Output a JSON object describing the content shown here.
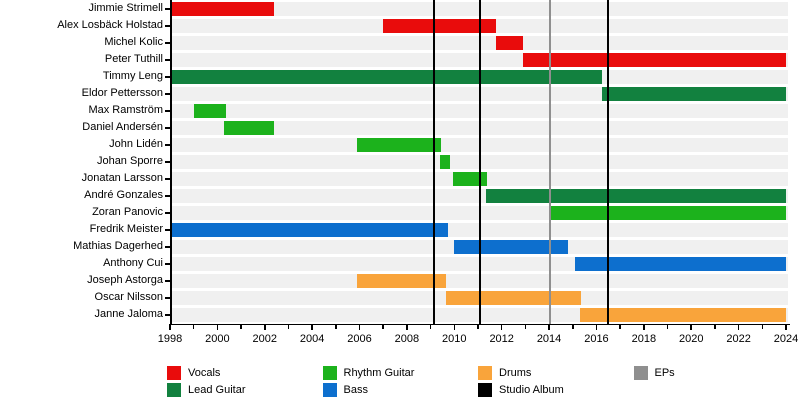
{
  "chart_data": {
    "type": "timeline",
    "description": "Band members tenure timeline (Gantt-style) with album and EP release markers",
    "x_axis": {
      "min": 1998,
      "max": 2024,
      "tick_step": 1,
      "label_step": 2,
      "tick_labels": [
        "1998",
        "2000",
        "2002",
        "2004",
        "2006",
        "2008",
        "2010",
        "2012",
        "2014",
        "2016",
        "2018",
        "2020",
        "2022",
        "2024"
      ]
    },
    "rows": [
      {
        "name": "Jimmie Strimell",
        "role": "Vocals",
        "color_key": "vocals",
        "start": 1998.0,
        "end": 2002.4
      },
      {
        "name": "Alex Losbäck Holstad",
        "role": "Vocals",
        "color_key": "vocals",
        "start": 2007.0,
        "end": 2011.75
      },
      {
        "name": "Michel Kolic",
        "role": "Vocals",
        "color_key": "vocals",
        "start": 2011.75,
        "end": 2012.9
      },
      {
        "name": "Peter Tuthill",
        "role": "Vocals",
        "color_key": "vocals",
        "start": 2012.9,
        "end": 2024.0
      },
      {
        "name": "Timmy Leng",
        "role": "Lead Guitar",
        "color_key": "lead_guitar",
        "start": 1998.0,
        "end": 2016.25
      },
      {
        "name": "Eldor Pettersson",
        "role": "Lead Guitar",
        "color_key": "lead_guitar",
        "start": 2016.25,
        "end": 2024.0
      },
      {
        "name": "Max Ramström",
        "role": "Rhythm Guitar",
        "color_key": "rhythm_guitar",
        "start": 1999.0,
        "end": 2000.35
      },
      {
        "name": "Daniel Andersén",
        "role": "Rhythm Guitar",
        "color_key": "rhythm_guitar",
        "start": 2000.3,
        "end": 2002.4
      },
      {
        "name": "John Lidén",
        "role": "Rhythm Guitar",
        "color_key": "rhythm_guitar",
        "start": 2005.9,
        "end": 2009.45
      },
      {
        "name": "Johan Sporre",
        "role": "Rhythm Guitar",
        "color_key": "rhythm_guitar",
        "start": 2009.4,
        "end": 2009.8
      },
      {
        "name": "Jonatan Larsson",
        "role": "Rhythm Guitar",
        "color_key": "rhythm_guitar",
        "start": 2009.95,
        "end": 2011.4
      },
      {
        "name": "André Gonzales",
        "role": "Lead Guitar",
        "color_key": "lead_guitar",
        "start": 2011.35,
        "end": 2024.0
      },
      {
        "name": "Zoran Panovic",
        "role": "Rhythm Guitar",
        "color_key": "rhythm_guitar",
        "start": 2014.1,
        "end": 2024.0
      },
      {
        "name": "Fredrik Meister",
        "role": "Bass",
        "color_key": "bass",
        "start": 1998.0,
        "end": 2009.75
      },
      {
        "name": "Mathias Dagerhed",
        "role": "Bass",
        "color_key": "bass",
        "start": 2010.0,
        "end": 2014.8
      },
      {
        "name": "Anthony Cui",
        "role": "Bass",
        "color_key": "bass",
        "start": 2015.1,
        "end": 2024.0
      },
      {
        "name": "Joseph Astorga",
        "role": "Drums",
        "color_key": "drums",
        "start": 2005.9,
        "end": 2009.65
      },
      {
        "name": "Oscar Nilsson",
        "role": "Drums",
        "color_key": "drums",
        "start": 2009.65,
        "end": 2015.35
      },
      {
        "name": "Janne Jaloma",
        "role": "Drums",
        "color_key": "drums",
        "start": 2015.3,
        "end": 2024.0
      }
    ],
    "events": {
      "studio_albums": [
        2009.15,
        2011.1,
        2016.5
      ],
      "eps": [
        2014.05
      ]
    },
    "legend": [
      {
        "label": "Vocals",
        "color_key": "vocals",
        "row": 0,
        "col": 0
      },
      {
        "label": "Lead Guitar",
        "color_key": "lead_guitar",
        "row": 1,
        "col": 0
      },
      {
        "label": "Rhythm Guitar",
        "color_key": "rhythm_guitar",
        "row": 0,
        "col": 1
      },
      {
        "label": "Bass",
        "color_key": "bass",
        "row": 1,
        "col": 1
      },
      {
        "label": "Drums",
        "color_key": "drums",
        "row": 0,
        "col": 2
      },
      {
        "label": "Studio Album",
        "color_key": "studio_album",
        "row": 1,
        "col": 2
      },
      {
        "label": "EPs",
        "color_key": "eps",
        "row": 0,
        "col": 3
      }
    ],
    "colors": {
      "vocals": "#e90c0c",
      "lead_guitar": "#12813f",
      "rhythm_guitar": "#1cb21c",
      "bass": "#0d6fce",
      "drums": "#f9a43b",
      "studio_album": "#000000",
      "eps": "#8f8f8f",
      "row_band": "#f0f0f0",
      "axis": "#000000"
    },
    "legend_position": "bottom",
    "grid": false
  }
}
